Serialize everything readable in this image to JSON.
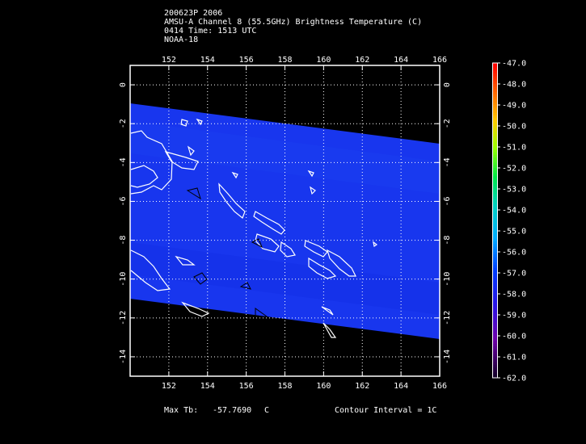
{
  "header": {
    "line1": "200623P 2006",
    "line2": "AMSU-A Channel 8 (55.5GHz) Brightness Temperature (C)",
    "line3": "0414 Time: 1513 UTC",
    "line4": "NOAA-18"
  },
  "map": {
    "x_ticks": [
      "152",
      "154",
      "156",
      "158",
      "160",
      "162",
      "164",
      "166"
    ],
    "y_ticks": [
      "0",
      "-2",
      "-4",
      "-6",
      "-8",
      "-10",
      "-12",
      "-14"
    ],
    "lon_range": [
      150,
      166
    ],
    "lat_range": [
      -15,
      1
    ],
    "swath_color": "#1836ee",
    "coast_color": "#ffffff"
  },
  "colorbar": {
    "labels": [
      "-47.0",
      "-48.0",
      "-49.0",
      "-50.0",
      "-51.0",
      "-52.0",
      "-53.0",
      "-54.0",
      "-55.0",
      "-56.0",
      "-57.0",
      "-58.0",
      "-59.0",
      "-60.0",
      "-61.0",
      "-62.0"
    ]
  },
  "footer": {
    "max_label": "Max Tb:",
    "max_value": "-57.7690",
    "max_unit": "C",
    "contour": "Contour Interval = 1C"
  }
}
